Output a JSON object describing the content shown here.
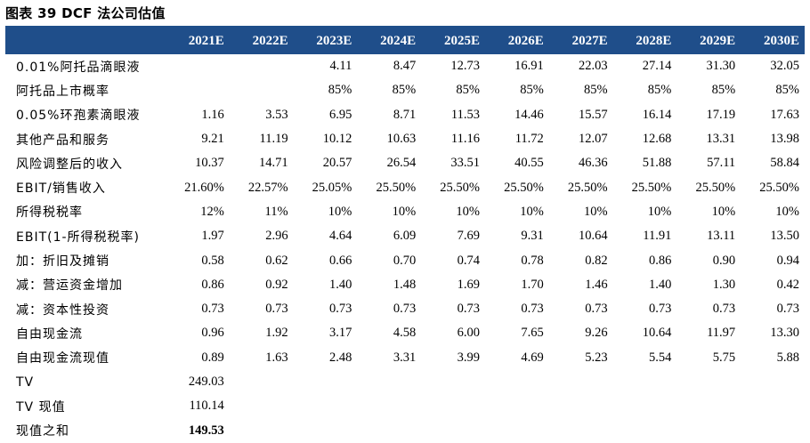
{
  "caption": "图表 39 DCF 法公司估值",
  "columns": [
    "2021E",
    "2022E",
    "2023E",
    "2024E",
    "2025E",
    "2026E",
    "2027E",
    "2028E",
    "2029E",
    "2030E"
  ],
  "rows": [
    {
      "label": "0.01%阿托品滴眼液",
      "values": [
        "",
        "",
        "4.11",
        "8.47",
        "12.73",
        "16.91",
        "22.03",
        "27.14",
        "31.30",
        "32.05"
      ]
    },
    {
      "label": "阿托品上市概率",
      "values": [
        "",
        "",
        "85%",
        "85%",
        "85%",
        "85%",
        "85%",
        "85%",
        "85%",
        "85%"
      ]
    },
    {
      "label": "0.05%环孢素滴眼液",
      "values": [
        "1.16",
        "3.53",
        "6.95",
        "8.71",
        "11.53",
        "14.46",
        "15.57",
        "16.14",
        "17.19",
        "17.63"
      ]
    },
    {
      "label": "其他产品和服务",
      "values": [
        "9.21",
        "11.19",
        "10.12",
        "10.63",
        "11.16",
        "11.72",
        "12.07",
        "12.68",
        "13.31",
        "13.98"
      ]
    },
    {
      "label": "风险调整后的收入",
      "values": [
        "10.37",
        "14.71",
        "20.57",
        "26.54",
        "33.51",
        "40.55",
        "46.36",
        "51.88",
        "57.11",
        "58.84"
      ]
    },
    {
      "label": "EBIT/销售收入",
      "values": [
        "21.60%",
        "22.57%",
        "25.05%",
        "25.50%",
        "25.50%",
        "25.50%",
        "25.50%",
        "25.50%",
        "25.50%",
        "25.50%"
      ]
    },
    {
      "label": "所得税税率",
      "values": [
        "12%",
        "11%",
        "10%",
        "10%",
        "10%",
        "10%",
        "10%",
        "10%",
        "10%",
        "10%"
      ]
    },
    {
      "label": "EBIT(1-所得税税率)",
      "values": [
        "1.97",
        "2.96",
        "4.64",
        "6.09",
        "7.69",
        "9.31",
        "10.64",
        "11.91",
        "13.11",
        "13.50"
      ]
    },
    {
      "label": "加：折旧及摊销",
      "values": [
        "0.58",
        "0.62",
        "0.66",
        "0.70",
        "0.74",
        "0.78",
        "0.82",
        "0.86",
        "0.90",
        "0.94"
      ]
    },
    {
      "label": "减：营运资金增加",
      "values": [
        "0.86",
        "0.92",
        "1.40",
        "1.48",
        "1.69",
        "1.70",
        "1.46",
        "1.40",
        "1.30",
        "0.42"
      ]
    },
    {
      "label": "减：资本性投资",
      "values": [
        "0.73",
        "0.73",
        "0.73",
        "0.73",
        "0.73",
        "0.73",
        "0.73",
        "0.73",
        "0.73",
        "0.73"
      ]
    },
    {
      "label": "自由现金流",
      "values": [
        "0.96",
        "1.92",
        "3.17",
        "4.58",
        "6.00",
        "7.65",
        "9.26",
        "10.64",
        "11.97",
        "13.30"
      ]
    },
    {
      "label": "自由现金流现值",
      "values": [
        "0.89",
        "1.63",
        "2.48",
        "3.31",
        "3.99",
        "4.69",
        "5.23",
        "5.54",
        "5.75",
        "5.88"
      ]
    },
    {
      "label": "TV",
      "values": [
        "249.03",
        "",
        "",
        "",
        "",
        "",
        "",
        "",
        "",
        ""
      ]
    },
    {
      "label": "TV 现值",
      "values": [
        "110.14",
        "",
        "",
        "",
        "",
        "",
        "",
        "",
        "",
        ""
      ]
    },
    {
      "label": "现值之和",
      "values": [
        "149.53",
        "",
        "",
        "",
        "",
        "",
        "",
        "",
        "",
        ""
      ],
      "bold": true
    }
  ]
}
